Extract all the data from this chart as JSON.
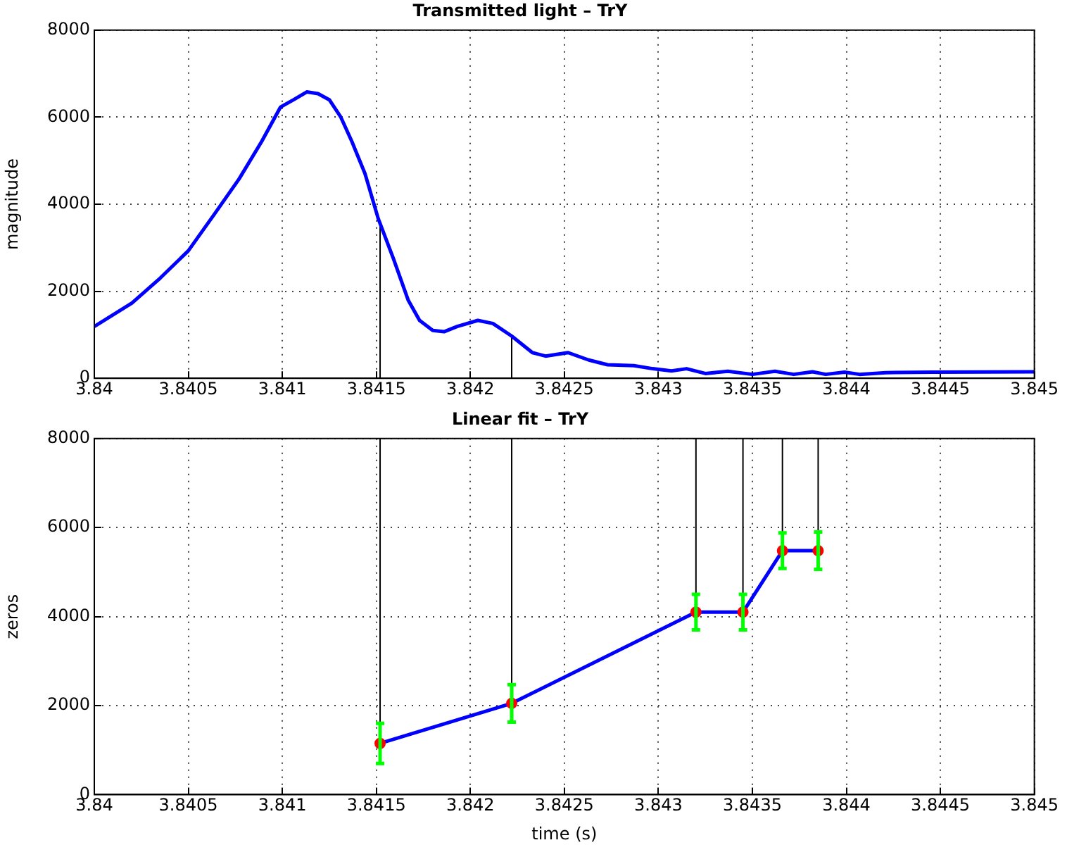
{
  "chart_data": [
    {
      "type": "line",
      "title": "Transmitted light – TrY",
      "ylabel": "magnitude",
      "series": [
        {
          "color": "#0000ff",
          "marker": "none",
          "x": [
            3.84,
            3.8402,
            3.84035,
            3.8405,
            3.84064,
            3.84077,
            3.84089,
            3.84099,
            3.84106,
            3.84113,
            3.84119,
            3.84125,
            3.84131,
            3.84137,
            3.84144,
            3.84151,
            3.84159,
            3.84167,
            3.84173,
            3.8418,
            3.84186,
            3.84193,
            3.84204,
            3.84212,
            3.84222,
            3.84233,
            3.8424,
            3.84252,
            3.84263,
            3.84273,
            3.84287,
            3.84297,
            3.84307,
            3.84315,
            3.84325,
            3.84337,
            3.8435,
            3.84362,
            3.84372,
            3.84382,
            3.84389,
            3.84399,
            3.84407,
            3.84421,
            3.84446,
            3.845
          ],
          "values": [
            1190,
            1730,
            2300,
            2930,
            3780,
            4580,
            5440,
            6230,
            6400,
            6580,
            6540,
            6400,
            6010,
            5440,
            4700,
            3670,
            2760,
            1790,
            1330,
            1100,
            1070,
            1190,
            1330,
            1260,
            970,
            590,
            510,
            590,
            420,
            310,
            290,
            220,
            170,
            220,
            110,
            160,
            90,
            160,
            90,
            150,
            90,
            140,
            90,
            130,
            140,
            150
          ]
        }
      ],
      "xlim": [
        3.84,
        3.845
      ],
      "xticks": [
        3.84,
        3.8405,
        3.841,
        3.8415,
        3.842,
        3.8425,
        3.843,
        3.8435,
        3.844,
        3.8445,
        3.845
      ],
      "ylim": [
        0,
        8000
      ],
      "yticks": [
        0,
        2000,
        4000,
        6000,
        8000
      ],
      "grid": true,
      "legend": false,
      "ref_lines": [
        {
          "axis": "x",
          "value": 3.84152,
          "color": "#000000"
        },
        {
          "axis": "x",
          "value": 3.84222,
          "color": "#000000"
        }
      ]
    },
    {
      "type": "line",
      "title": "Linear fit – TrY",
      "xlabel": "time (s)",
      "ylabel": "zeros",
      "series": [
        {
          "color": "#0000ff",
          "marker": "none",
          "x": [
            3.84152,
            3.84222,
            3.8432,
            3.84345,
            3.84366,
            3.84385
          ],
          "values": [
            1150,
            2050,
            4100,
            4100,
            5480,
            5480
          ]
        },
        {
          "type": "scatter",
          "color": "#ff0000",
          "marker": "circle",
          "x": [
            3.84152,
            3.84222,
            3.8432,
            3.84345,
            3.84366,
            3.84385
          ],
          "values": [
            1150,
            2050,
            4100,
            4100,
            5480,
            5480
          ],
          "errors": [
            450,
            420,
            400,
            400,
            400,
            420
          ]
        }
      ],
      "xlim": [
        3.84,
        3.845
      ],
      "xticks": [
        3.84,
        3.8405,
        3.841,
        3.8415,
        3.842,
        3.8425,
        3.843,
        3.8435,
        3.844,
        3.8445,
        3.845
      ],
      "ylim": [
        0,
        8000
      ],
      "yticks": [
        0,
        2000,
        4000,
        6000,
        8000
      ],
      "grid": true,
      "legend": false,
      "ref_lines": [
        {
          "axis": "x",
          "value": 3.84152,
          "color": "#000000"
        },
        {
          "axis": "x",
          "value": 3.84222,
          "color": "#000000"
        },
        {
          "axis": "x",
          "value": 3.8432,
          "color": "#000000"
        },
        {
          "axis": "x",
          "value": 3.84345,
          "color": "#000000"
        },
        {
          "axis": "x",
          "value": 3.84366,
          "color": "#000000"
        },
        {
          "axis": "x",
          "value": 3.84385,
          "color": "#000000"
        }
      ]
    }
  ]
}
